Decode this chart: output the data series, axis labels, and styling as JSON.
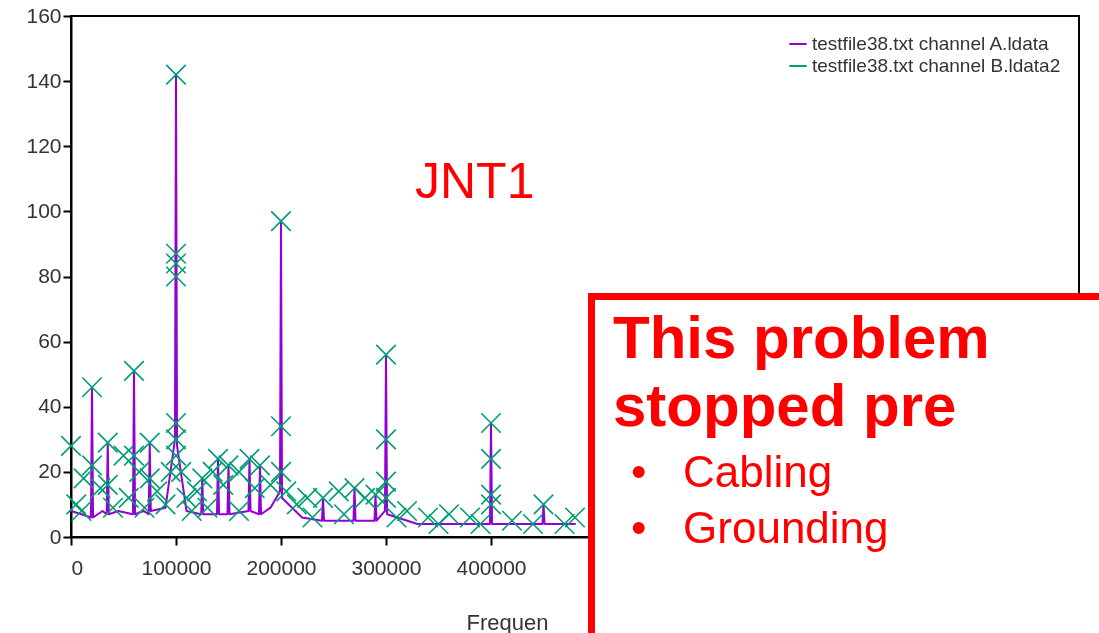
{
  "chart_data": {
    "type": "line",
    "xlabel": "Frequen",
    "xlim": [
      0,
      960000
    ],
    "ylim": [
      0,
      160
    ],
    "xticks": [
      0,
      100000,
      200000,
      300000,
      400000
    ],
    "yticks": [
      0,
      20,
      40,
      60,
      80,
      100,
      120,
      140,
      160
    ],
    "grid": false,
    "legend": "top right",
    "annotations": [
      "JNT1",
      "This problem",
      "stopped pre",
      "•   Cabling",
      "•   Grounding"
    ],
    "series": [
      {
        "name": "testfile38.txt channel A.ldata",
        "type": "line",
        "color": "#9400d3",
        "x": [
          0,
          10000,
          19000,
          20000,
          21000,
          30000,
          34000,
          35000,
          36000,
          45000,
          59000,
          60000,
          61000,
          69000,
          74000,
          75000,
          76000,
          90000,
          99000,
          100000,
          101000,
          110000,
          124000,
          125000,
          126000,
          139000,
          140000,
          141000,
          149000,
          150000,
          151000,
          169000,
          170000,
          171000,
          179000,
          180000,
          181000,
          190000,
          199000,
          200000,
          201000,
          220000,
          239000,
          240000,
          241000,
          269000,
          270000,
          271000,
          289000,
          290000,
          291000,
          299000,
          300000,
          301000,
          330000,
          360000,
          399000,
          400000,
          401000,
          430000,
          449000,
          450000,
          451000,
          480000
        ],
        "values": [
          8,
          7,
          6,
          46,
          6,
          8,
          7,
          29,
          7,
          8,
          7,
          51,
          7,
          8,
          7,
          29,
          8,
          9,
          30,
          142,
          28,
          8,
          7,
          18,
          7,
          7,
          24,
          7,
          7,
          22,
          7,
          8,
          24,
          8,
          7,
          22,
          7,
          9,
          14,
          97,
          12,
          6,
          5,
          12,
          5,
          5,
          15,
          5,
          5,
          13,
          5,
          8,
          56,
          7,
          4,
          4,
          4,
          35,
          4,
          4,
          4,
          10,
          4,
          4
        ]
      },
      {
        "name": "testfile38.txt channel B.ldata2",
        "type": "scatter",
        "marker": "cross",
        "color": "#009e73",
        "x": [
          0,
          5000,
          10000,
          12000,
          20000,
          20000,
          28000,
          35000,
          35000,
          40000,
          50000,
          55000,
          60000,
          60000,
          65000,
          70000,
          75000,
          75000,
          82000,
          90000,
          95000,
          100000,
          100000,
          100000,
          100000,
          100000,
          100000,
          100000,
          105000,
          110000,
          115000,
          120000,
          125000,
          130000,
          135000,
          140000,
          145000,
          150000,
          160000,
          160000,
          170000,
          175000,
          180000,
          190000,
          200000,
          200000,
          200000,
          205000,
          215000,
          225000,
          230000,
          240000,
          255000,
          260000,
          270000,
          280000,
          290000,
          300000,
          300000,
          300000,
          300000,
          310000,
          320000,
          340000,
          350000,
          360000,
          380000,
          390000,
          400000,
          400000,
          400000,
          400000,
          420000,
          440000,
          450000,
          470000,
          480000
        ],
        "values": [
          28,
          10,
          8,
          18,
          46,
          22,
          15,
          29,
          16,
          9,
          25,
          12,
          51,
          25,
          20,
          9,
          29,
          18,
          14,
          10,
          20,
          142,
          87,
          84,
          80,
          35,
          30,
          25,
          20,
          12,
          8,
          14,
          18,
          9,
          20,
          24,
          16,
          22,
          20,
          8,
          24,
          15,
          22,
          16,
          97,
          34,
          20,
          14,
          10,
          12,
          6,
          12,
          14,
          7,
          15,
          12,
          13,
          56,
          30,
          17,
          12,
          6,
          8,
          6,
          4,
          7,
          6,
          4,
          35,
          24,
          13,
          10,
          5,
          4,
          10,
          4,
          6
        ]
      }
    ]
  }
}
